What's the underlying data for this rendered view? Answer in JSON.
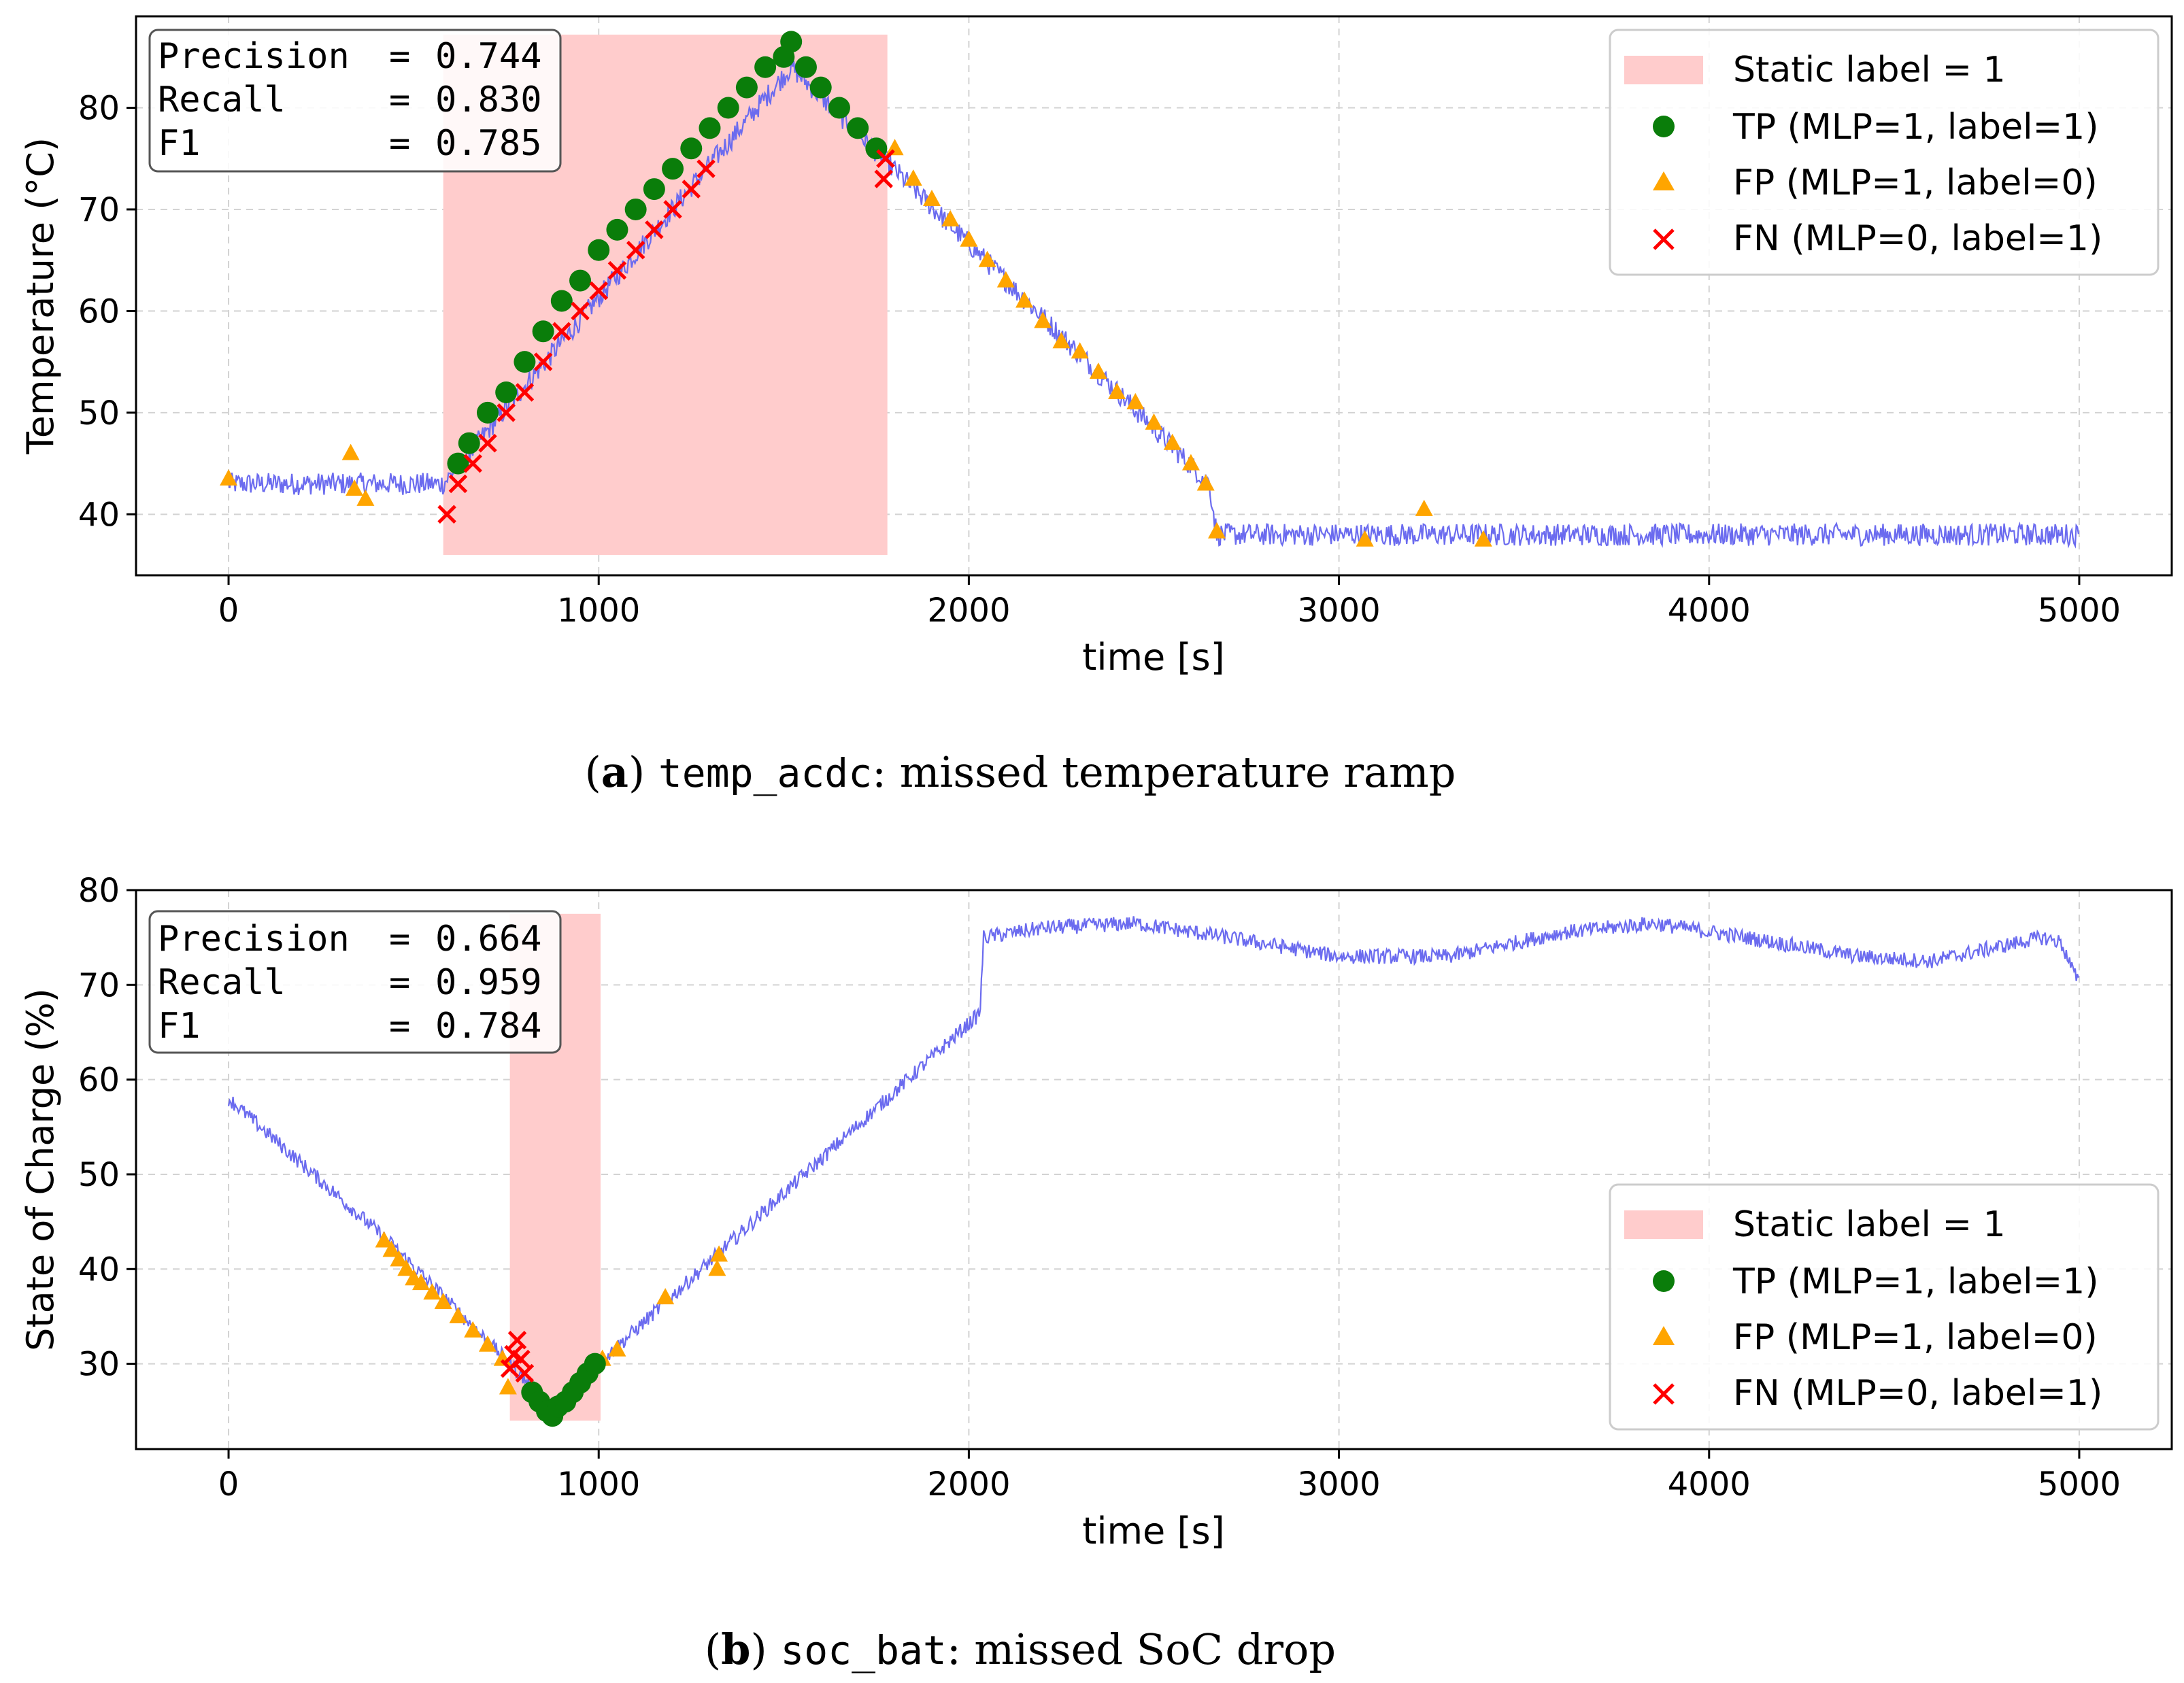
{
  "colors": {
    "signal": "#6b6bef",
    "tp": "#0a7d0a",
    "fp": "#ffa500",
    "fn": "#ff0000",
    "static_label": "#ffcccc"
  },
  "chart_data": [
    {
      "type": "line",
      "panel": "a",
      "xlabel": "time [s]",
      "ylabel": "Temperature (°C)",
      "xlim": [
        -250,
        5250
      ],
      "ylim": [
        34,
        89
      ],
      "xticks": [
        0,
        1000,
        2000,
        3000,
        4000,
        5000
      ],
      "yticks": [
        40,
        50,
        60,
        70,
        80
      ],
      "grid": true,
      "metrics": [
        {
          "label": "Precision",
          "value": "0.744"
        },
        {
          "label": "Recall",
          "value": "0.830"
        },
        {
          "label": "F1",
          "value": "0.785"
        }
      ],
      "static_label_region": {
        "x": [
          580,
          1780
        ],
        "y": [
          36,
          87.2
        ]
      },
      "signal": {
        "name": "temp_acdc",
        "points": [
          [
            0,
            43
          ],
          [
            580,
            43
          ],
          [
            1520,
            84
          ],
          [
            2100,
            63
          ],
          [
            2650,
            43
          ],
          [
            2670,
            38
          ],
          [
            5000,
            38
          ]
        ],
        "noise": 1.1
      },
      "legend": {
        "position": "top-right",
        "entries": [
          {
            "key": "static",
            "text": "Static label = 1"
          },
          {
            "key": "tp",
            "text": "TP (MLP=1, label=1)"
          },
          {
            "key": "fp",
            "text": "FP (MLP=1, label=0)"
          },
          {
            "key": "fn",
            "text": "FN (MLP=0, label=1)"
          }
        ]
      },
      "tp_points": [
        [
          620,
          45
        ],
        [
          650,
          47
        ],
        [
          700,
          50
        ],
        [
          750,
          52
        ],
        [
          800,
          55
        ],
        [
          850,
          58
        ],
        [
          900,
          61
        ],
        [
          950,
          63
        ],
        [
          1000,
          66
        ],
        [
          1050,
          68
        ],
        [
          1100,
          70
        ],
        [
          1150,
          72
        ],
        [
          1200,
          74
        ],
        [
          1250,
          76
        ],
        [
          1300,
          78
        ],
        [
          1350,
          80
        ],
        [
          1400,
          82
        ],
        [
          1450,
          84
        ],
        [
          1500,
          85
        ],
        [
          1520,
          86.5
        ],
        [
          1560,
          84
        ],
        [
          1600,
          82
        ],
        [
          1650,
          80
        ],
        [
          1700,
          78
        ],
        [
          1750,
          76
        ]
      ],
      "fp_points": [
        [
          0,
          43.5
        ],
        [
          330,
          46
        ],
        [
          340,
          42.5
        ],
        [
          370,
          41.5
        ],
        [
          1800,
          76
        ],
        [
          1850,
          73
        ],
        [
          1900,
          71
        ],
        [
          1950,
          69
        ],
        [
          2000,
          67
        ],
        [
          2050,
          65
        ],
        [
          2100,
          63
        ],
        [
          2150,
          61
        ],
        [
          2200,
          59
        ],
        [
          2250,
          57
        ],
        [
          2300,
          56
        ],
        [
          2350,
          54
        ],
        [
          2400,
          52
        ],
        [
          2450,
          51
        ],
        [
          2500,
          49
        ],
        [
          2550,
          47
        ],
        [
          2600,
          45
        ],
        [
          2640,
          43
        ],
        [
          2670,
          38.3
        ],
        [
          3070,
          37.5
        ],
        [
          3230,
          40.5
        ],
        [
          3390,
          37.5
        ]
      ],
      "fn_points": [
        [
          590,
          40
        ],
        [
          620,
          43
        ],
        [
          660,
          45
        ],
        [
          700,
          47
        ],
        [
          750,
          50
        ],
        [
          800,
          52
        ],
        [
          850,
          55
        ],
        [
          900,
          58
        ],
        [
          950,
          60
        ],
        [
          1000,
          62
        ],
        [
          1050,
          64
        ],
        [
          1100,
          66
        ],
        [
          1150,
          68
        ],
        [
          1200,
          70
        ],
        [
          1250,
          72
        ],
        [
          1290,
          74
        ],
        [
          1770,
          73
        ],
        [
          1775,
          75
        ]
      ]
    },
    {
      "type": "line",
      "panel": "b",
      "xlabel": "time [s]",
      "ylabel": "State of Charge (%)",
      "xlim": [
        -250,
        5250
      ],
      "ylim": [
        21,
        80
      ],
      "xticks": [
        0,
        1000,
        2000,
        3000,
        4000,
        5000
      ],
      "yticks": [
        30,
        40,
        50,
        60,
        70,
        80
      ],
      "grid": true,
      "metrics": [
        {
          "label": "Precision",
          "value": "0.664"
        },
        {
          "label": "Recall",
          "value": "0.959"
        },
        {
          "label": "F1",
          "value": "0.784"
        }
      ],
      "static_label_region": {
        "x": [
          760,
          1005
        ],
        "y": [
          24,
          77.5
        ]
      },
      "signal": {
        "name": "soc_bat",
        "points": [
          [
            0,
            58
          ],
          [
            430,
            43
          ],
          [
            760,
            30
          ],
          [
            880,
            25
          ],
          [
            1000,
            30
          ],
          [
            1500,
            48
          ],
          [
            2030,
            67
          ],
          [
            2040,
            75
          ],
          [
            2200,
            76
          ],
          [
            2450,
            76.5
          ],
          [
            2700,
            75
          ],
          [
            3000,
            73
          ],
          [
            3300,
            73
          ],
          [
            3600,
            75.5
          ],
          [
            3850,
            76.5
          ],
          [
            4100,
            75
          ],
          [
            4400,
            73
          ],
          [
            4600,
            72.5
          ],
          [
            4900,
            75
          ],
          [
            4950,
            74.5
          ],
          [
            5000,
            70
          ]
        ],
        "noise": 0.8
      },
      "legend": {
        "position": "lower-right",
        "entries": [
          {
            "key": "static",
            "text": "Static label = 1"
          },
          {
            "key": "tp",
            "text": "TP (MLP=1, label=1)"
          },
          {
            "key": "fp",
            "text": "FP (MLP=1, label=0)"
          },
          {
            "key": "fn",
            "text": "FN (MLP=0, label=1)"
          }
        ]
      },
      "tp_points": [
        [
          820,
          27
        ],
        [
          840,
          26
        ],
        [
          860,
          25
        ],
        [
          875,
          24.5
        ],
        [
          890,
          25.5
        ],
        [
          910,
          26
        ],
        [
          930,
          27
        ],
        [
          950,
          28
        ],
        [
          970,
          29
        ],
        [
          990,
          30
        ]
      ],
      "fp_points": [
        [
          420,
          43
        ],
        [
          440,
          42
        ],
        [
          460,
          41
        ],
        [
          480,
          40
        ],
        [
          500,
          39
        ],
        [
          520,
          38.5
        ],
        [
          550,
          37.5
        ],
        [
          580,
          36.5
        ],
        [
          620,
          35
        ],
        [
          660,
          33.5
        ],
        [
          700,
          32
        ],
        [
          740,
          30.5
        ],
        [
          755,
          27.5
        ],
        [
          1010,
          30.5
        ],
        [
          1050,
          31.5
        ],
        [
          1180,
          37
        ],
        [
          1320,
          40
        ],
        [
          1325,
          41.5
        ]
      ],
      "fn_points": [
        [
          760,
          29.5
        ],
        [
          770,
          31
        ],
        [
          780,
          32.5
        ],
        [
          790,
          30.5
        ],
        [
          800,
          29
        ]
      ]
    }
  ],
  "captions": [
    {
      "letter": "a",
      "code": "temp_acdc",
      "text": ": missed temperature ramp"
    },
    {
      "letter": "b",
      "code": "soc_bat",
      "text": ": missed SoC drop"
    }
  ]
}
